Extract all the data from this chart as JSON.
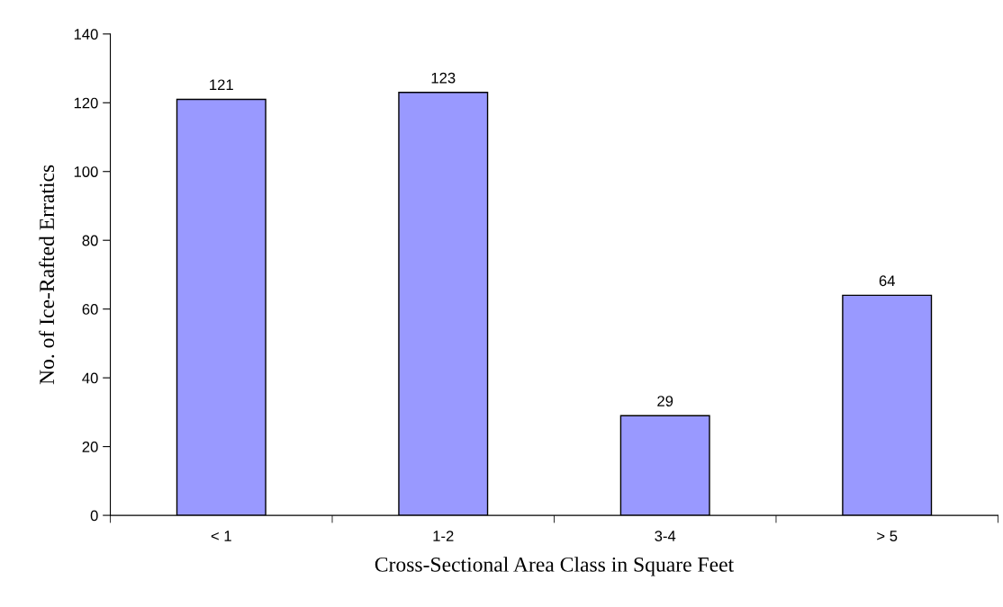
{
  "chart_data": {
    "type": "bar",
    "xlabel": "Cross-Sectional Area Class in Square Feet",
    "ylabel": "No. of Ice-Rafted Erratics",
    "categories": [
      "< 1",
      "1-2",
      "3-4",
      "> 5"
    ],
    "values": [
      121,
      123,
      29,
      64
    ],
    "color": "#9999ff",
    "data_labels": true,
    "ylim": [
      0,
      140
    ],
    "yticks": [
      0,
      20,
      40,
      60,
      80,
      100,
      120,
      140
    ],
    "grid": false,
    "legend": false
  }
}
